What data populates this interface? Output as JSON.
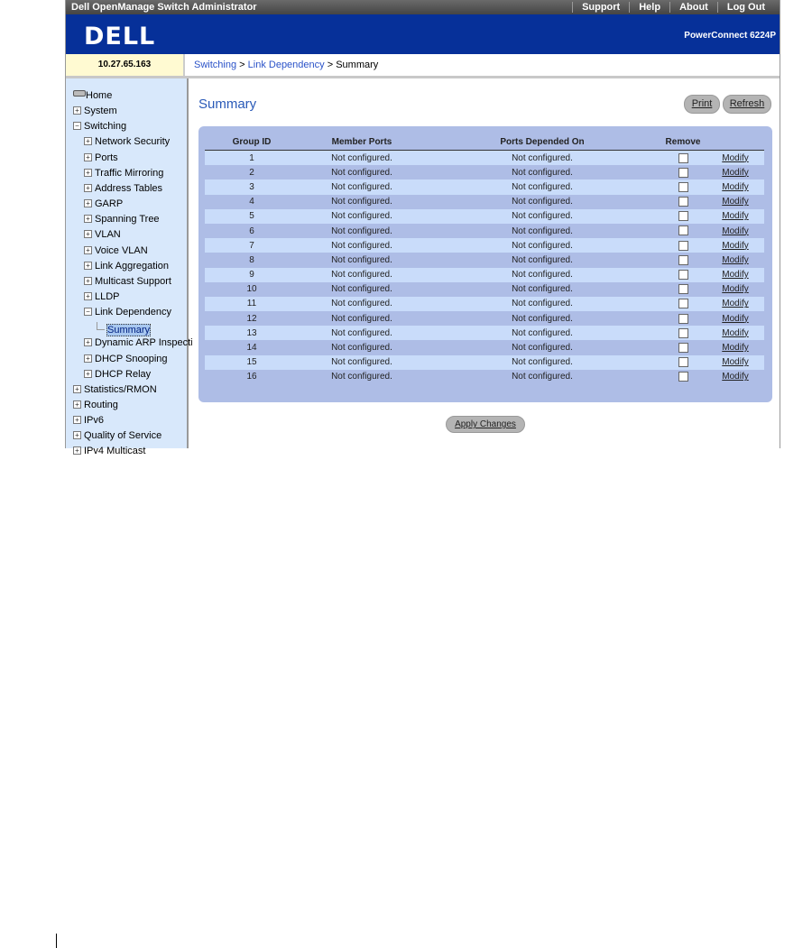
{
  "topbar": {
    "title": "Dell OpenManage Switch Administrator",
    "links": [
      "Support",
      "Help",
      "About",
      "Log Out"
    ]
  },
  "header": {
    "logo": "DELL",
    "model": "PowerConnect 6224P"
  },
  "info": {
    "ip": "10.27.65.163",
    "breadcrumb": [
      "Switching",
      "Link Dependency",
      "Summary"
    ],
    "sep": ">"
  },
  "sidebar": {
    "items": [
      {
        "label": "Home",
        "level": 0,
        "icon": "home-icon"
      },
      {
        "label": "System",
        "level": 0,
        "icon": "plus"
      },
      {
        "label": "Switching",
        "level": 0,
        "icon": "minus"
      },
      {
        "label": "Network Security",
        "level": 1,
        "icon": "plus"
      },
      {
        "label": "Ports",
        "level": 1,
        "icon": "plus"
      },
      {
        "label": "Traffic Mirroring",
        "level": 1,
        "icon": "plus"
      },
      {
        "label": "Address Tables",
        "level": 1,
        "icon": "plus"
      },
      {
        "label": "GARP",
        "level": 1,
        "icon": "plus"
      },
      {
        "label": "Spanning Tree",
        "level": 1,
        "icon": "plus"
      },
      {
        "label": "VLAN",
        "level": 1,
        "icon": "plus"
      },
      {
        "label": "Voice VLAN",
        "level": 1,
        "icon": "plus"
      },
      {
        "label": "Link Aggregation",
        "level": 1,
        "icon": "plus"
      },
      {
        "label": "Multicast Support",
        "level": 1,
        "icon": "plus"
      },
      {
        "label": "LLDP",
        "level": 1,
        "icon": "plus"
      },
      {
        "label": "Link Dependency",
        "level": 1,
        "icon": "minus"
      },
      {
        "label": "Summary",
        "level": 2,
        "icon": "leaf",
        "selected": true
      },
      {
        "label": "Dynamic ARP Inspecti",
        "level": 1,
        "icon": "plus"
      },
      {
        "label": "DHCP Snooping",
        "level": 1,
        "icon": "plus"
      },
      {
        "label": "DHCP Relay",
        "level": 1,
        "icon": "plus"
      },
      {
        "label": "Statistics/RMON",
        "level": 0,
        "icon": "plus"
      },
      {
        "label": "Routing",
        "level": 0,
        "icon": "plus"
      },
      {
        "label": "IPv6",
        "level": 0,
        "icon": "plus"
      },
      {
        "label": "Quality of Service",
        "level": 0,
        "icon": "plus"
      },
      {
        "label": "IPv4 Multicast",
        "level": 0,
        "icon": "plus"
      }
    ]
  },
  "main": {
    "title": "Summary",
    "print": "Print",
    "refresh": "Refresh",
    "apply": "Apply Changes",
    "columns": [
      "Group ID",
      "Member Ports",
      "Ports Depended On",
      "Remove",
      ""
    ],
    "modify": "Modify",
    "rows": [
      {
        "id": "1",
        "member": "Not configured.",
        "depended": "Not configured.",
        "remove": false
      },
      {
        "id": "2",
        "member": "Not configured.",
        "depended": "Not configured.",
        "remove": false
      },
      {
        "id": "3",
        "member": "Not configured.",
        "depended": "Not configured.",
        "remove": false
      },
      {
        "id": "4",
        "member": "Not configured.",
        "depended": "Not configured.",
        "remove": false
      },
      {
        "id": "5",
        "member": "Not configured.",
        "depended": "Not configured.",
        "remove": false
      },
      {
        "id": "6",
        "member": "Not configured.",
        "depended": "Not configured.",
        "remove": false
      },
      {
        "id": "7",
        "member": "Not configured.",
        "depended": "Not configured.",
        "remove": false
      },
      {
        "id": "8",
        "member": "Not configured.",
        "depended": "Not configured.",
        "remove": false
      },
      {
        "id": "9",
        "member": "Not configured.",
        "depended": "Not configured.",
        "remove": false
      },
      {
        "id": "10",
        "member": "Not configured.",
        "depended": "Not configured.",
        "remove": false
      },
      {
        "id": "11",
        "member": "Not configured.",
        "depended": "Not configured.",
        "remove": false
      },
      {
        "id": "12",
        "member": "Not configured.",
        "depended": "Not configured.",
        "remove": false
      },
      {
        "id": "13",
        "member": "Not configured.",
        "depended": "Not configured.",
        "remove": false
      },
      {
        "id": "14",
        "member": "Not configured.",
        "depended": "Not configured.",
        "remove": false
      },
      {
        "id": "15",
        "member": "Not configured.",
        "depended": "Not configured.",
        "remove": false
      },
      {
        "id": "16",
        "member": "Not configured.",
        "depended": "Not configured.",
        "remove": false
      }
    ]
  },
  "colors": {
    "header_blue": "#063099",
    "panel": "#aebde6",
    "row_light": "#c9dcfa",
    "sidebar": "#d8e8fb",
    "ip_bg": "#fffad2"
  }
}
